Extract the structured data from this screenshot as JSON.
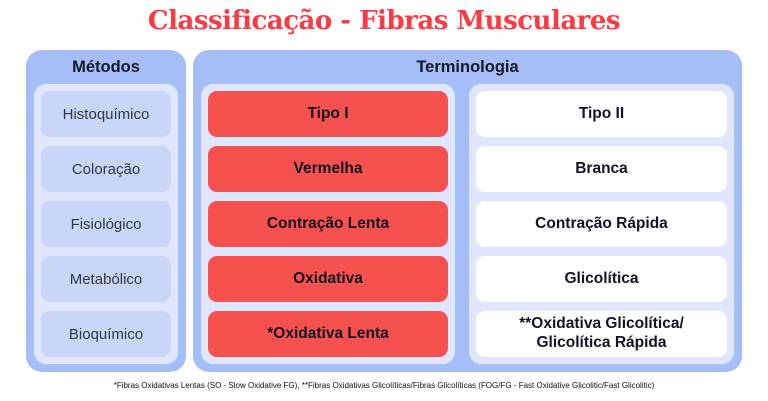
{
  "title": "Classificação - Fibras Musculares",
  "methods": {
    "header": "Métodos",
    "items": [
      "Histoquímico",
      "Coloração",
      "Fisiológico",
      "Metabólico",
      "Bioquímico"
    ]
  },
  "terminology": {
    "header": "Terminologia",
    "type_i": [
      "Tipo I",
      "Vermelha",
      "Contração Lenta",
      "Oxidativa",
      "*Oxidativa Lenta"
    ],
    "type_ii": [
      "Tipo II",
      "Branca",
      "Contração Rápida",
      "Glicolítica",
      "**Oxidativa Glicolítica/\nGlicolítica Rápida"
    ]
  },
  "footnote": "*Fibras Oxidativas Lentas (SO - Slow Oxidative FG), **Fibras Oxidativas Glicolíticas/Fibras Glicolíticas (FOG/FG - Fast Oxidative Glicolitic/Fast Glicolitic)",
  "colors": {
    "title_red": "#fb3b43",
    "panel_blue": "#a5bef7",
    "inner_lavender": "#dfe6fd",
    "method_card": "#c9d6f8",
    "red_card": "#f5514e",
    "white_card": "#ffffff",
    "dark_text": "#14182b"
  }
}
